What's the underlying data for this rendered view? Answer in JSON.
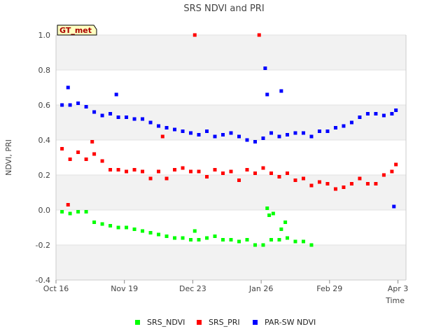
{
  "chart_data": {
    "type": "scatter",
    "title": "SRS NDVI and PRI",
    "xlabel": "Time",
    "ylabel": "NDVI, PRI",
    "badge": "GT_met",
    "ylim": [
      -0.4,
      1.0
    ],
    "yticks": [
      {
        "value": -0.4,
        "label": "-0.4"
      },
      {
        "value": -0.2,
        "label": "-0.2"
      },
      {
        "value": 0.0,
        "label": "0.0"
      },
      {
        "value": 0.2,
        "label": "0.2"
      },
      {
        "value": 0.4,
        "label": "0.4"
      },
      {
        "value": 0.6,
        "label": "0.6"
      },
      {
        "value": 0.8,
        "label": "0.8"
      },
      {
        "value": 1.0,
        "label": "1.0"
      }
    ],
    "xlim": [
      "2023-10-16",
      "2024-04-07"
    ],
    "xticks": [
      {
        "value": "2023-10-16",
        "label": "Oct 16"
      },
      {
        "value": "2023-11-19",
        "label": "Nov 19"
      },
      {
        "value": "2023-12-23",
        "label": "Dec 23"
      },
      {
        "value": "2024-01-26",
        "label": "Jan 26"
      },
      {
        "value": "2024-02-29",
        "label": "Feb 29"
      },
      {
        "value": "2024-04-03",
        "label": "Apr 3"
      }
    ],
    "grid": true,
    "legend_position": "bottom",
    "series": [
      {
        "name": "SRS_NDVI",
        "color": "#00ff00",
        "x": [
          "2023-10-19",
          "2023-10-23",
          "2023-10-27",
          "2023-10-31",
          "2023-11-04",
          "2023-11-08",
          "2023-11-12",
          "2023-11-16",
          "2023-11-20",
          "2023-11-24",
          "2023-11-28",
          "2023-12-02",
          "2023-12-06",
          "2023-12-10",
          "2023-12-14",
          "2023-12-18",
          "2023-12-22",
          "2023-12-26",
          "2023-12-30",
          "2024-01-03",
          "2024-01-07",
          "2024-01-11",
          "2024-01-15",
          "2024-01-19",
          "2024-01-23",
          "2024-01-27",
          "2024-01-31",
          "2024-02-04",
          "2024-02-08",
          "2024-02-12",
          "2024-02-16",
          "2024-02-20",
          "2024-01-29",
          "2024-01-30",
          "2024-02-01",
          "2024-02-05",
          "2024-02-07",
          "2023-12-24"
        ],
        "y": [
          -0.01,
          -0.02,
          -0.01,
          -0.01,
          -0.07,
          -0.08,
          -0.09,
          -0.1,
          -0.1,
          -0.11,
          -0.12,
          -0.13,
          -0.14,
          -0.15,
          -0.16,
          -0.16,
          -0.17,
          -0.17,
          -0.16,
          -0.15,
          -0.17,
          -0.17,
          -0.18,
          -0.17,
          -0.2,
          -0.2,
          -0.17,
          -0.17,
          -0.16,
          -0.18,
          -0.18,
          -0.2,
          0.01,
          -0.03,
          -0.02,
          -0.11,
          -0.07,
          -0.12
        ]
      },
      {
        "name": "SRS_PRI",
        "color": "#ff0000",
        "x": [
          "2023-10-19",
          "2023-10-23",
          "2023-10-27",
          "2023-10-31",
          "2023-11-04",
          "2023-11-08",
          "2023-11-12",
          "2023-11-16",
          "2023-11-20",
          "2023-11-24",
          "2023-11-28",
          "2023-12-02",
          "2023-12-06",
          "2023-12-10",
          "2023-12-14",
          "2023-12-18",
          "2023-12-22",
          "2023-12-26",
          "2023-12-30",
          "2024-01-03",
          "2024-01-07",
          "2024-01-11",
          "2024-01-15",
          "2024-01-19",
          "2024-01-23",
          "2024-01-27",
          "2024-01-31",
          "2024-02-04",
          "2024-02-08",
          "2024-02-12",
          "2024-02-16",
          "2024-02-20",
          "2024-02-24",
          "2024-02-28",
          "2024-03-03",
          "2024-03-07",
          "2024-03-11",
          "2024-03-15",
          "2024-03-19",
          "2024-03-23",
          "2024-03-27",
          "2024-03-31",
          "2024-04-02",
          "2023-12-24",
          "2024-01-25",
          "2023-10-22",
          "2023-11-03",
          "2023-12-08"
        ],
        "y": [
          0.35,
          0.29,
          0.33,
          0.29,
          0.32,
          0.28,
          0.23,
          0.23,
          0.22,
          0.23,
          0.22,
          0.18,
          0.22,
          0.18,
          0.23,
          0.24,
          0.22,
          0.22,
          0.19,
          0.23,
          0.21,
          0.22,
          0.17,
          0.23,
          0.21,
          0.24,
          0.21,
          0.19,
          0.21,
          0.17,
          0.18,
          0.14,
          0.16,
          0.15,
          0.12,
          0.13,
          0.15,
          0.18,
          0.15,
          0.15,
          0.2,
          0.22,
          0.26,
          1.0,
          1.0,
          0.03,
          0.39,
          0.42
        ]
      },
      {
        "name": "PAR-SW NDVI",
        "color": "#0000ff",
        "x": [
          "2023-10-19",
          "2023-10-23",
          "2023-10-27",
          "2023-10-31",
          "2023-11-04",
          "2023-11-08",
          "2023-11-12",
          "2023-11-16",
          "2023-11-20",
          "2023-11-24",
          "2023-11-28",
          "2023-12-02",
          "2023-12-06",
          "2023-12-10",
          "2023-12-14",
          "2023-12-18",
          "2023-12-22",
          "2023-12-26",
          "2023-12-30",
          "2024-01-03",
          "2024-01-07",
          "2024-01-11",
          "2024-01-15",
          "2024-01-19",
          "2024-01-23",
          "2024-01-27",
          "2024-01-31",
          "2024-02-04",
          "2024-02-08",
          "2024-02-12",
          "2024-02-16",
          "2024-02-20",
          "2024-02-24",
          "2024-02-28",
          "2024-03-03",
          "2024-03-07",
          "2024-03-11",
          "2024-03-15",
          "2024-03-19",
          "2024-03-23",
          "2024-03-27",
          "2024-03-31",
          "2024-04-02",
          "2024-01-28",
          "2024-01-29",
          "2024-02-05",
          "2024-04-01",
          "2023-10-22",
          "2023-11-15"
        ],
        "y": [
          0.6,
          0.6,
          0.61,
          0.59,
          0.56,
          0.54,
          0.55,
          0.53,
          0.53,
          0.52,
          0.52,
          0.5,
          0.48,
          0.47,
          0.46,
          0.45,
          0.44,
          0.43,
          0.45,
          0.42,
          0.43,
          0.44,
          0.42,
          0.4,
          0.39,
          0.41,
          0.44,
          0.42,
          0.43,
          0.44,
          0.44,
          0.42,
          0.45,
          0.45,
          0.47,
          0.48,
          0.5,
          0.53,
          0.55,
          0.55,
          0.54,
          0.55,
          0.57,
          0.81,
          0.66,
          0.68,
          0.02,
          0.7,
          0.66
        ]
      }
    ]
  }
}
